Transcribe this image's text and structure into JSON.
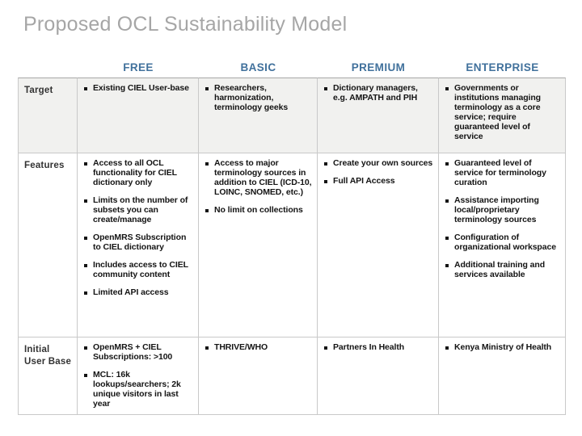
{
  "slide": {
    "title": "Proposed OCL Sustainability Model"
  },
  "table": {
    "column_headers": [
      "FREE",
      "BASIC",
      "PREMIUM",
      "ENTERPRISE"
    ],
    "rows": [
      {
        "label": "Target",
        "cells": {
          "free": [
            "Existing CIEL User-base"
          ],
          "basic": [
            "Researchers, harmonization, terminology geeks"
          ],
          "premium": [
            "Dictionary managers, e.g. AMPATH and PIH"
          ],
          "enterprise": [
            "Governments or institutions managing terminology as a core service; require guaranteed level of service"
          ]
        }
      },
      {
        "label": "Features",
        "cells": {
          "free": [
            "Access to all OCL functionality for CIEL dictionary only",
            "Limits on the number of subsets you can create/manage",
            "OpenMRS Subscription to CIEL dictionary",
            "Includes access to CIEL community content",
            "Limited API access"
          ],
          "basic": [
            "Access to major terminology sources in addition to CIEL (ICD-10, LOINC, SNOMED, etc.)",
            "No limit on collections"
          ],
          "premium": [
            "Create your own sources",
            "Full API Access"
          ],
          "enterprise": [
            "Guaranteed level of service for terminology curation",
            "Assistance importing local/proprietary terminology sources",
            "Configuration of organizational workspace",
            "Additional training and services available"
          ]
        }
      },
      {
        "label": "Initial User Base",
        "cells": {
          "free": [
            "OpenMRS + CIEL Subscriptions: >100",
            "MCL: 16k lookups/searchers; 2k unique visitors in last year"
          ],
          "basic": [
            "THRIVE/WHO"
          ],
          "premium": [
            "Partners In Health"
          ],
          "enterprise": [
            "Kenya Ministry of Health"
          ]
        }
      }
    ]
  },
  "icons": {
    "bullet": "small-black-square"
  },
  "colors": {
    "title_text": "#A6A6A6",
    "header_text": "#41719C",
    "body_text": "#141414",
    "row_label_text": "#333333",
    "cell_border": "#C9C9C9",
    "table_top_border": "#A7A7A7",
    "shaded_row_fill": "#F1F1EF",
    "background": "#FFFFFF"
  }
}
